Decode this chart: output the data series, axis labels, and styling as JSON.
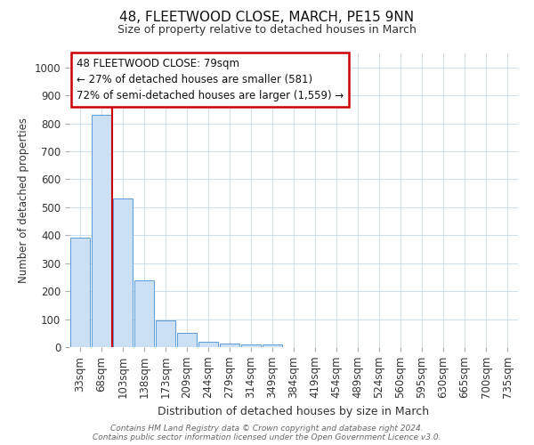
{
  "title": "48, FLEETWOOD CLOSE, MARCH, PE15 9NN",
  "subtitle": "Size of property relative to detached houses in March",
  "xlabel": "Distribution of detached houses by size in March",
  "ylabel": "Number of detached properties",
  "bar_labels": [
    "33sqm",
    "68sqm",
    "103sqm",
    "138sqm",
    "173sqm",
    "209sqm",
    "244sqm",
    "279sqm",
    "314sqm",
    "349sqm",
    "384sqm",
    "419sqm",
    "454sqm",
    "489sqm",
    "524sqm",
    "560sqm",
    "595sqm",
    "630sqm",
    "665sqm",
    "700sqm",
    "735sqm"
  ],
  "bar_values": [
    390,
    830,
    530,
    240,
    95,
    50,
    18,
    13,
    10,
    8,
    0,
    0,
    0,
    0,
    0,
    0,
    0,
    0,
    0,
    0,
    0
  ],
  "bar_color": "#cce0f5",
  "bar_edge_color": "#5b9bd5",
  "vline_x": 1.5,
  "vline_color": "#cc0000",
  "ylim": [
    0,
    1050
  ],
  "yticks": [
    0,
    100,
    200,
    300,
    400,
    500,
    600,
    700,
    800,
    900,
    1000
  ],
  "annotation_text": "48 FLEETWOOD CLOSE: 79sqm\n← 27% of detached houses are smaller (581)\n72% of semi-detached houses are larger (1,559) →",
  "annotation_box_color": "#cc0000",
  "footer_text": "Contains HM Land Registry data © Crown copyright and database right 2024.\nContains public sector information licensed under the Open Government Licence v3.0.",
  "background_color": "#ffffff",
  "grid_color": "#c8d8e8"
}
